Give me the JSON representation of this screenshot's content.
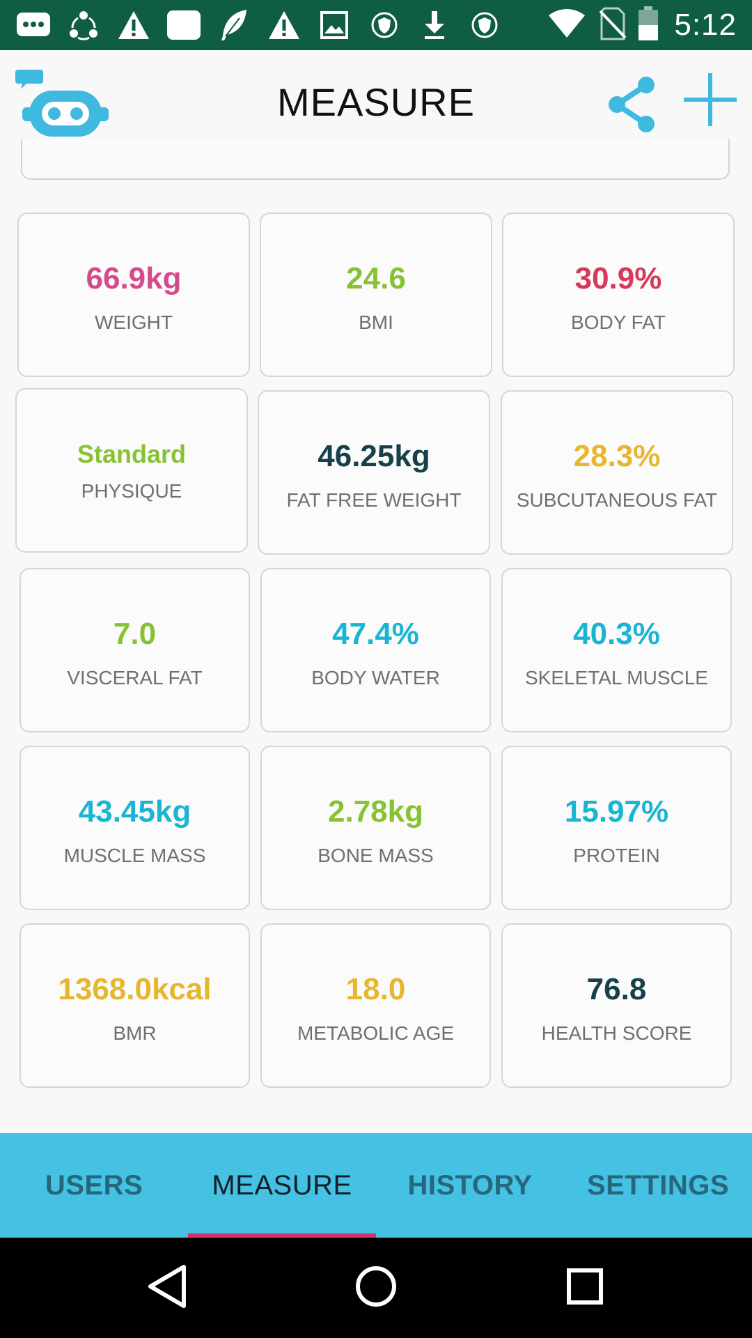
{
  "status_bar": {
    "time": "5:12",
    "icons": [
      "message-icon",
      "sync-icon",
      "warning-icon",
      "square-icon",
      "feather-icon",
      "warning-icon",
      "image-icon",
      "shield-icon",
      "download-icon",
      "shield-icon"
    ],
    "right_icons": [
      "wifi-icon",
      "no-sim-icon",
      "battery-icon"
    ]
  },
  "header": {
    "title": "MEASURE",
    "logo": "robot-chat-logo",
    "share_icon": "share-icon",
    "add_icon": "plus-icon"
  },
  "metrics": [
    {
      "value": "66.9kg",
      "label": "WEIGHT",
      "color": "#d34b8c"
    },
    {
      "value": "24.6",
      "label": "BMI",
      "color": "#86c232"
    },
    {
      "value": "30.9%",
      "label": "BODY FAT",
      "color": "#d9385e"
    },
    {
      "value": "Standard",
      "label": "PHYSIQUE",
      "color": "#86c232"
    },
    {
      "value": "46.25kg",
      "label": "FAT FREE WEIGHT",
      "color": "#16404a"
    },
    {
      "value": "28.3%",
      "label": "SUBCUTANEOUS FAT",
      "color": "#e6b72e"
    },
    {
      "value": "7.0",
      "label": "VISCERAL FAT",
      "color": "#86c232"
    },
    {
      "value": "47.4%",
      "label": "BODY WATER",
      "color": "#19b5d2"
    },
    {
      "value": "40.3%",
      "label": "SKELETAL MUSCLE",
      "color": "#19b5d2"
    },
    {
      "value": "43.45kg",
      "label": "MUSCLE MASS",
      "color": "#19b5d2"
    },
    {
      "value": "2.78kg",
      "label": "BONE MASS",
      "color": "#86c232"
    },
    {
      "value": "15.97%",
      "label": "PROTEIN",
      "color": "#19b5d2"
    },
    {
      "value": "1368.0kcal",
      "label": "BMR",
      "color": "#e6b72e"
    },
    {
      "value": "18.0",
      "label": "METABOLIC AGE",
      "color": "#e6b72e"
    },
    {
      "value": "76.8",
      "label": "HEALTH SCORE",
      "color": "#16404a"
    }
  ],
  "tabs": [
    {
      "label": "USERS",
      "active": false
    },
    {
      "label": "MEASURE",
      "active": true
    },
    {
      "label": "HISTORY",
      "active": false
    },
    {
      "label": "SETTINGS",
      "active": false
    }
  ],
  "nav": [
    "back-icon",
    "home-icon",
    "recents-icon"
  ],
  "colors": {
    "status_bar": "#0f5d44",
    "tab_bar": "#45c1e3",
    "accent": "#45c1e3",
    "tab_indicator": "#d93067"
  }
}
